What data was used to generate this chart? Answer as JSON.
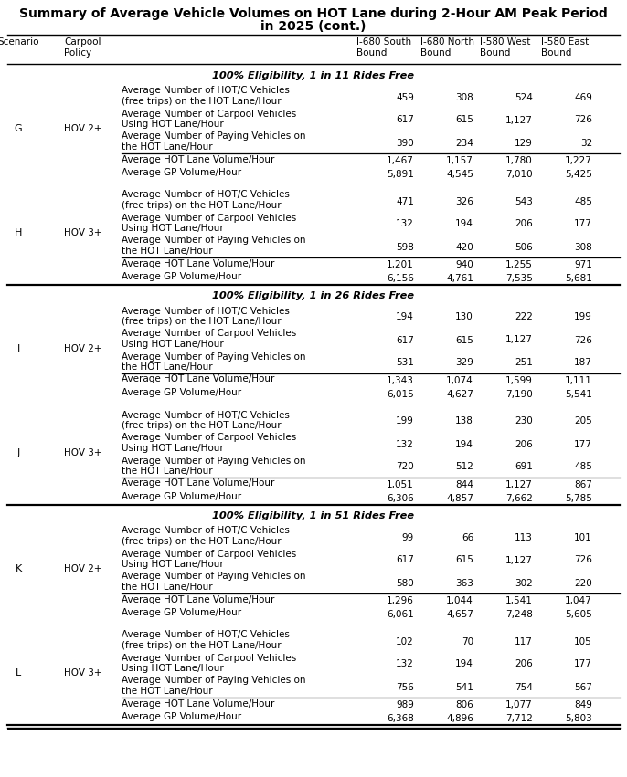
{
  "title_line1": "Summary of Average Vehicle Volumes on HOT Lane during 2-Hour AM Peak Period",
  "title_line2": "in 2025 (cont.)",
  "sections": [
    {
      "section_title": "100% Eligibility, 1 in 11 Rides Free",
      "groups": [
        {
          "scenario": "G",
          "policy": "HOV 2+",
          "rows": [
            {
              "label": "Average Number of HOT/C Vehicles\n(free trips) on the HOT Lane/Hour",
              "values": [
                "459",
                "308",
                "524",
                "469"
              ],
              "top_line": false
            },
            {
              "label": "Average Number of Carpool Vehicles\nUsing HOT Lane/Hour",
              "values": [
                "617",
                "615",
                "1,127",
                "726"
              ],
              "top_line": false
            },
            {
              "label": "Average Number of Paying Vehicles on\nthe HOT Lane/Hour",
              "values": [
                "390",
                "234",
                "129",
                "32"
              ],
              "top_line": false
            },
            {
              "label": "Average HOT Lane Volume/Hour",
              "values": [
                "1,467",
                "1,157",
                "1,780",
                "1,227"
              ],
              "top_line": true
            },
            {
              "label": "Average GP Volume/Hour",
              "values": [
                "5,891",
                "4,545",
                "7,010",
                "5,425"
              ],
              "top_line": false
            }
          ]
        },
        {
          "scenario": "H",
          "policy": "HOV 3+",
          "rows": [
            {
              "label": "Average Number of HOT/C Vehicles\n(free trips) on the HOT Lane/Hour",
              "values": [
                "471",
                "326",
                "543",
                "485"
              ],
              "top_line": false
            },
            {
              "label": "Average Number of Carpool Vehicles\nUsing HOT Lane/Hour",
              "values": [
                "132",
                "194",
                "206",
                "177"
              ],
              "top_line": false
            },
            {
              "label": "Average Number of Paying Vehicles on\nthe HOT Lane/Hour",
              "values": [
                "598",
                "420",
                "506",
                "308"
              ],
              "top_line": false
            },
            {
              "label": "Average HOT Lane Volume/Hour",
              "values": [
                "1,201",
                "940",
                "1,255",
                "971"
              ],
              "top_line": true
            },
            {
              "label": "Average GP Volume/Hour",
              "values": [
                "6,156",
                "4,761",
                "7,535",
                "5,681"
              ],
              "top_line": false
            }
          ]
        }
      ]
    },
    {
      "section_title": "100% Eligibility, 1 in 26 Rides Free",
      "groups": [
        {
          "scenario": "I",
          "policy": "HOV 2+",
          "rows": [
            {
              "label": "Average Number of HOT/C Vehicles\n(free trips) on the HOT Lane/Hour",
              "values": [
                "194",
                "130",
                "222",
                "199"
              ],
              "top_line": false
            },
            {
              "label": "Average Number of Carpool Vehicles\nUsing HOT Lane/Hour",
              "values": [
                "617",
                "615",
                "1,127",
                "726"
              ],
              "top_line": false
            },
            {
              "label": "Average Number of Paying Vehicles on\nthe HOT Lane/Hour",
              "values": [
                "531",
                "329",
                "251",
                "187"
              ],
              "top_line": false
            },
            {
              "label": "Average HOT Lane Volume/Hour",
              "values": [
                "1,343",
                "1,074",
                "1,599",
                "1,111"
              ],
              "top_line": true
            },
            {
              "label": "Average GP Volume/Hour",
              "values": [
                "6,015",
                "4,627",
                "7,190",
                "5,541"
              ],
              "top_line": false
            }
          ]
        },
        {
          "scenario": "J",
          "policy": "HOV 3+",
          "rows": [
            {
              "label": "Average Number of HOT/C Vehicles\n(free trips) on the HOT Lane/Hour",
              "values": [
                "199",
                "138",
                "230",
                "205"
              ],
              "top_line": false
            },
            {
              "label": "Average Number of Carpool Vehicles\nUsing HOT Lane/Hour",
              "values": [
                "132",
                "194",
                "206",
                "177"
              ],
              "top_line": false
            },
            {
              "label": "Average Number of Paying Vehicles on\nthe HOT Lane/Hour",
              "values": [
                "720",
                "512",
                "691",
                "485"
              ],
              "top_line": false
            },
            {
              "label": "Average HOT Lane Volume/Hour",
              "values": [
                "1,051",
                "844",
                "1,127",
                "867"
              ],
              "top_line": true
            },
            {
              "label": "Average GP Volume/Hour",
              "values": [
                "6,306",
                "4,857",
                "7,662",
                "5,785"
              ],
              "top_line": false
            }
          ]
        }
      ]
    },
    {
      "section_title": "100% Eligibility, 1 in 51 Rides Free",
      "groups": [
        {
          "scenario": "K",
          "policy": "HOV 2+",
          "rows": [
            {
              "label": "Average Number of HOT/C Vehicles\n(free trips) on the HOT Lane/Hour",
              "values": [
                "99",
                "66",
                "113",
                "101"
              ],
              "top_line": false
            },
            {
              "label": "Average Number of Carpool Vehicles\nUsing HOT Lane/Hour",
              "values": [
                "617",
                "615",
                "1,127",
                "726"
              ],
              "top_line": false
            },
            {
              "label": "Average Number of Paying Vehicles on\nthe HOT Lane/Hour",
              "values": [
                "580",
                "363",
                "302",
                "220"
              ],
              "top_line": false
            },
            {
              "label": "Average HOT Lane Volume/Hour",
              "values": [
                "1,296",
                "1,044",
                "1,541",
                "1,047"
              ],
              "top_line": true
            },
            {
              "label": "Average GP Volume/Hour",
              "values": [
                "6,061",
                "4,657",
                "7,248",
                "5,605"
              ],
              "top_line": false
            }
          ]
        },
        {
          "scenario": "L",
          "policy": "HOV 3+",
          "rows": [
            {
              "label": "Average Number of HOT/C Vehicles\n(free trips) on the HOT Lane/Hour",
              "values": [
                "102",
                "70",
                "117",
                "105"
              ],
              "top_line": false
            },
            {
              "label": "Average Number of Carpool Vehicles\nUsing HOT Lane/Hour",
              "values": [
                "132",
                "194",
                "206",
                "177"
              ],
              "top_line": false
            },
            {
              "label": "Average Number of Paying Vehicles on\nthe HOT Lane/Hour",
              "values": [
                "756",
                "541",
                "754",
                "567"
              ],
              "top_line": false
            },
            {
              "label": "Average HOT Lane Volume/Hour",
              "values": [
                "989",
                "806",
                "1,077",
                "849"
              ],
              "top_line": true
            },
            {
              "label": "Average GP Volume/Hour",
              "values": [
                "6,368",
                "4,896",
                "7,712",
                "5,803"
              ],
              "top_line": false
            }
          ]
        }
      ]
    }
  ],
  "col_headers": [
    "I-680 South\nBound",
    "I-680 North\nBound",
    "I-580 West\nBound",
    "I-580 East\nBound"
  ],
  "bg_color": "#ffffff",
  "title_fontsize": 10.0,
  "body_fontsize": 7.5,
  "header_fontsize": 7.5,
  "section_fontsize": 8.2
}
